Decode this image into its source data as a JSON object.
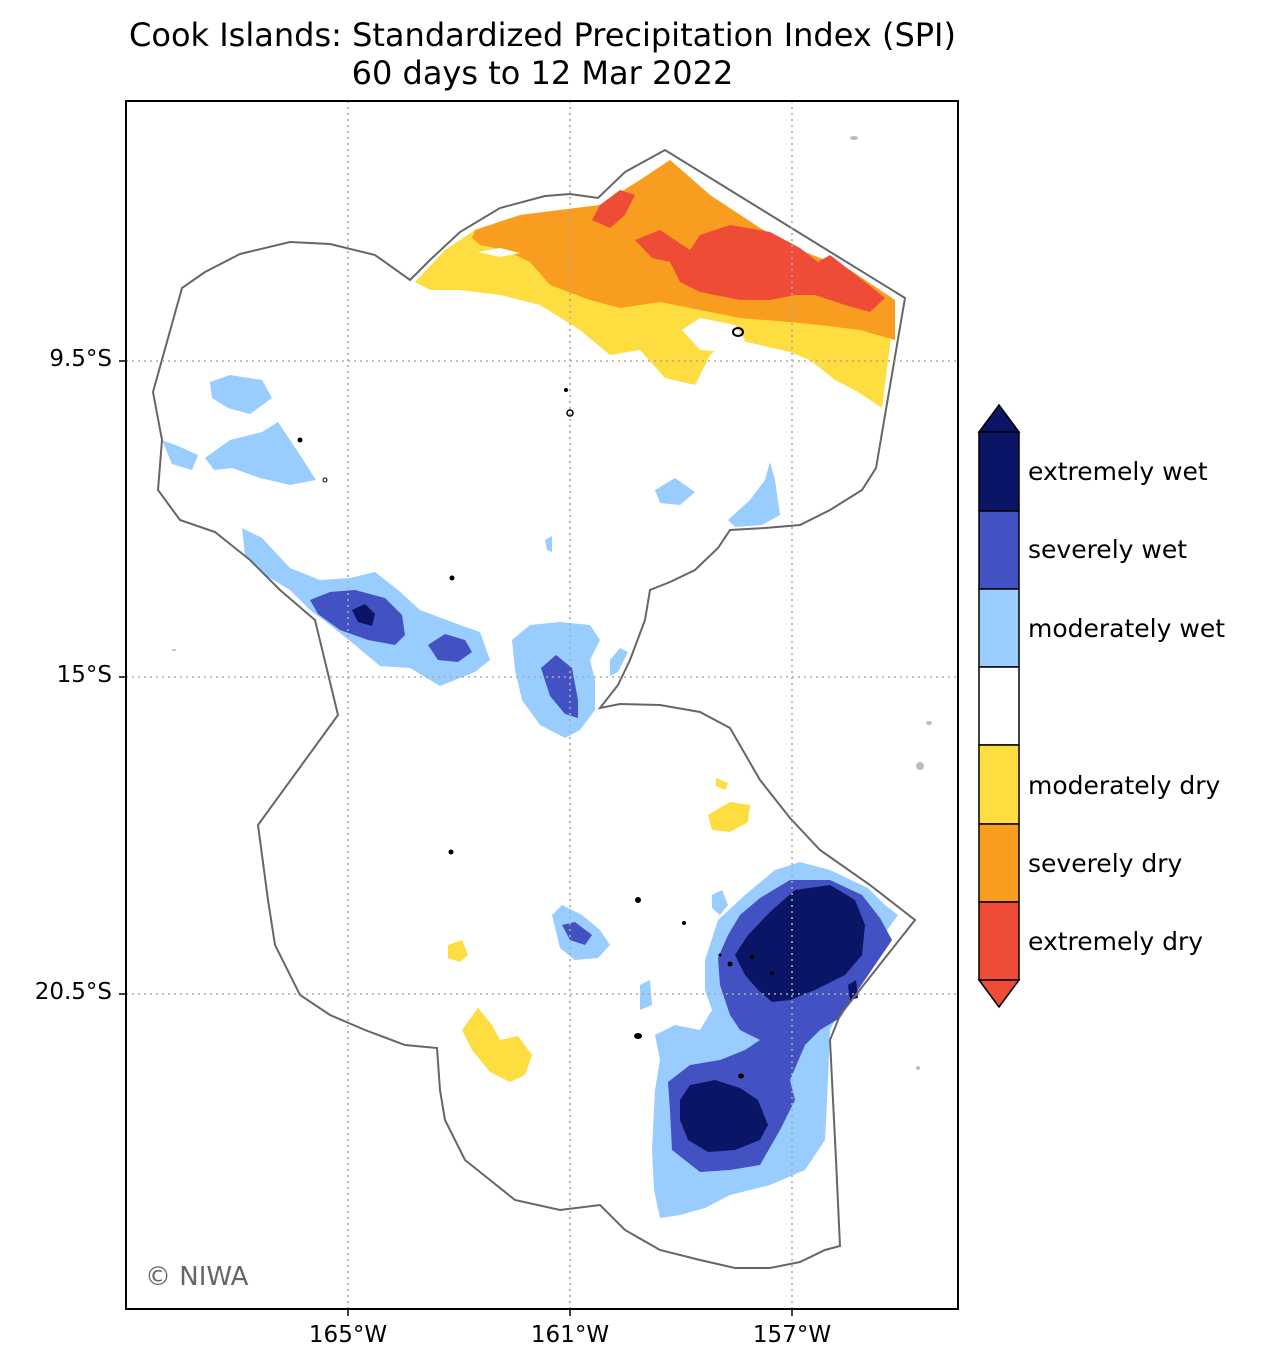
{
  "title": {
    "line1": "Cook Islands: Standardized Precipitation Index (SPI)",
    "line2": "60 days to 12 Mar 2022"
  },
  "axes": {
    "latitude_ticks": [
      "9.5°S",
      "15°S",
      "20.5°S"
    ],
    "longitude_ticks": [
      "165°W",
      "161°W",
      "157°W"
    ]
  },
  "credit": "© NIWA",
  "legend": {
    "categories": [
      {
        "label": "extremely wet",
        "color": "#0b1566"
      },
      {
        "label": "severely wet",
        "color": "#4252c2"
      },
      {
        "label": "moderately wet",
        "color": "#99ccff"
      },
      {
        "label": "",
        "color": "#ffffff"
      },
      {
        "label": "moderately dry",
        "color": "#fddd3f"
      },
      {
        "label": "severely dry",
        "color": "#f89d1f"
      },
      {
        "label": "extremely dry",
        "color": "#ee4c36"
      }
    ]
  },
  "colors": {
    "eez_outline": "#666666",
    "gridline": "#aaaaaa",
    "island": "#000000"
  }
}
